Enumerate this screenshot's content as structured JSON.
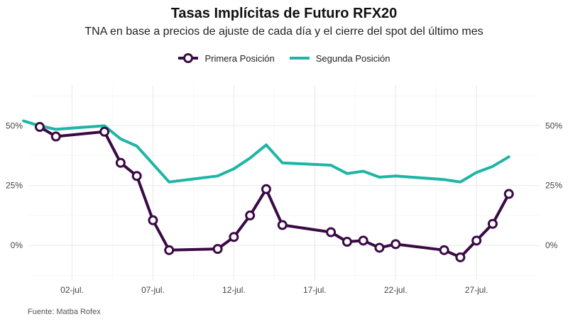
{
  "chart_data": {
    "type": "line",
    "title": "Tasas Implícitas de Futuro RFX20",
    "subtitle": "TNA en base a precios de ajuste de cada día y el cierre del spot del último mes",
    "caption": "Fuente: Matba Rofex",
    "x_unit": "day of July",
    "x_ticks": [
      2,
      7,
      12,
      17,
      22,
      27
    ],
    "x_tick_labels": [
      "02-jul.",
      "07-jul.",
      "12-jul.",
      "17-jul.",
      "22-jul.",
      "27-jul."
    ],
    "xlim": [
      -0.7,
      30.9
    ],
    "y_ticks": [
      0,
      25,
      50
    ],
    "y_tick_labels": [
      "0%",
      "25%",
      "50%"
    ],
    "ylim": [
      -14.5,
      67
    ],
    "grid": true,
    "legend_position": "top",
    "series": [
      {
        "name": "Primera Posición",
        "color": "#3b0a45",
        "style": "line-with-open-circles",
        "x": [
          0,
          1,
          4,
          5,
          6,
          7,
          8,
          11,
          12,
          13,
          14,
          15,
          18,
          19,
          20,
          21,
          22,
          25,
          26,
          27,
          28,
          29
        ],
        "y": [
          49.5,
          45.5,
          47.5,
          34.5,
          29,
          10.5,
          -2,
          -1.5,
          3.5,
          12.5,
          23.5,
          8.5,
          5.5,
          1.5,
          2,
          -1,
          0.5,
          -2,
          -5,
          2,
          9,
          21.5
        ]
      },
      {
        "name": "Segunda Posición",
        "color": "#1fb5a5",
        "style": "line",
        "x": [
          -1,
          0,
          1,
          4,
          5,
          6,
          8,
          11,
          12,
          13,
          14,
          15,
          18,
          19,
          20,
          21,
          22,
          25,
          26,
          27,
          28,
          29
        ],
        "y": [
          52,
          50,
          48.5,
          50,
          44.5,
          41.5,
          26.5,
          29,
          32,
          36.5,
          42,
          34.5,
          33.5,
          30,
          31,
          28.5,
          29,
          27.5,
          26.5,
          30.5,
          33,
          37
        ]
      }
    ]
  }
}
